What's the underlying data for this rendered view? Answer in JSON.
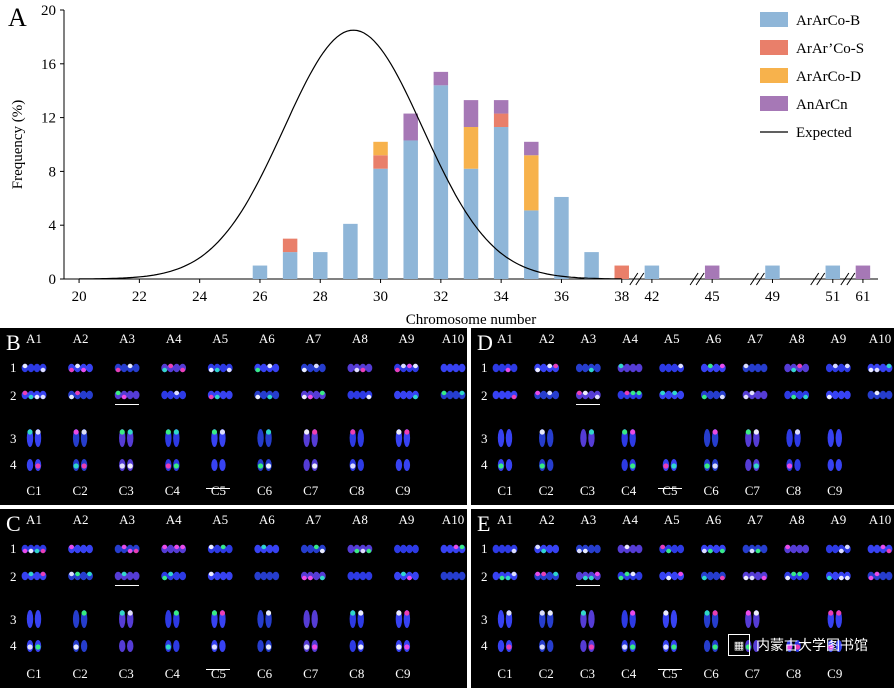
{
  "colors": {
    "ArArCo-B": "#8fb6d8",
    "ArAr'Co-S": "#e97f6a",
    "ArArCo-D": "#f7b24c",
    "AnArCn": "#a678b6",
    "Expected": "#000000"
  },
  "chart_data": {
    "type": "bar",
    "panel_label": "A",
    "xlabel": "Chromosome number",
    "ylabel": "Frequency (%)",
    "ylim": [
      0,
      20
    ],
    "yticks": [
      "0",
      "4",
      "8",
      "12",
      "16",
      "20"
    ],
    "xticks": [
      "20",
      "22",
      "24",
      "26",
      "28",
      "30",
      "32",
      "34",
      "36",
      "38",
      "42",
      "45",
      "49",
      "51",
      "61"
    ],
    "legend_position": "top-right",
    "legend": [
      "ArArCo-B",
      "ArAr’Co-S",
      "ArArCo-D",
      "AnArCn",
      "Expected"
    ],
    "categories": [
      26,
      27,
      28,
      29,
      30,
      31,
      32,
      33,
      34,
      35,
      36,
      37,
      38,
      42,
      45,
      49,
      51,
      61
    ],
    "series": [
      {
        "name": "ArArCo-B",
        "values": [
          1,
          2,
          2,
          4.1,
          8.2,
          10.3,
          14.4,
          8.2,
          11.3,
          5.1,
          6.1,
          2,
          0,
          1,
          0,
          1,
          1,
          0
        ]
      },
      {
        "name": "ArAr’Co-S",
        "values": [
          0,
          1,
          0,
          0,
          1,
          0,
          0,
          0,
          1,
          0,
          0,
          0,
          1,
          0,
          0,
          0,
          0,
          0
        ]
      },
      {
        "name": "ArArCo-D",
        "values": [
          0,
          0,
          0,
          0,
          1,
          0,
          0,
          3.1,
          0,
          4.1,
          0,
          0,
          0,
          0,
          0,
          0,
          0,
          0
        ]
      },
      {
        "name": "AnArCn",
        "values": [
          0,
          0,
          0,
          0,
          0,
          2,
          1,
          2,
          1,
          1,
          0,
          0,
          0,
          0,
          1,
          0,
          0,
          1
        ]
      }
    ],
    "expected_curve": {
      "name": "Expected",
      "mean": 29.1,
      "sd": 2.3,
      "peak": 18.5
    },
    "axis_break_after": "38"
  },
  "karyotype": {
    "panels": [
      {
        "letter": "B",
        "top": [
          "A1",
          "A2",
          "A3",
          "A4",
          "A5",
          "A6",
          "A7",
          "A8",
          "A9",
          "A10"
        ],
        "bottom": [
          "C1",
          "C2",
          "C3",
          "C4",
          "C5",
          "C6",
          "C7",
          "C8",
          "C9"
        ],
        "rows": [
          "1",
          "2",
          "3",
          "4"
        ]
      },
      {
        "letter": "D",
        "top": [
          "A1",
          "A2",
          "A3",
          "A4",
          "A5",
          "A6",
          "A7",
          "A8",
          "A9",
          "A10"
        ],
        "bottom": [
          "C1",
          "C2",
          "C3",
          "C4",
          "C5",
          "C6",
          "C7",
          "C8",
          "C9"
        ],
        "rows": [
          "1",
          "2",
          "3",
          "4"
        ]
      },
      {
        "letter": "C",
        "top": [
          "A1",
          "A2",
          "A3",
          "A4",
          "A5",
          "A6",
          "A7",
          "A8",
          "A9",
          "A10"
        ],
        "bottom": [
          "C1",
          "C2",
          "C3",
          "C4",
          "C5",
          "C6",
          "C7",
          "C8",
          "C9"
        ],
        "rows": [
          "1",
          "2",
          "3",
          "4"
        ]
      },
      {
        "letter": "E",
        "top": [
          "A1",
          "A2",
          "A3",
          "A4",
          "A5",
          "A6",
          "A7",
          "A8",
          "A9",
          "A10"
        ],
        "bottom": [
          "C1",
          "C2",
          "C3",
          "C4",
          "C5",
          "C6",
          "C7",
          "C8",
          "C9"
        ],
        "rows": [
          "1",
          "2",
          "3",
          "4"
        ]
      }
    ],
    "watermark": "内蒙古大学图书馆"
  }
}
